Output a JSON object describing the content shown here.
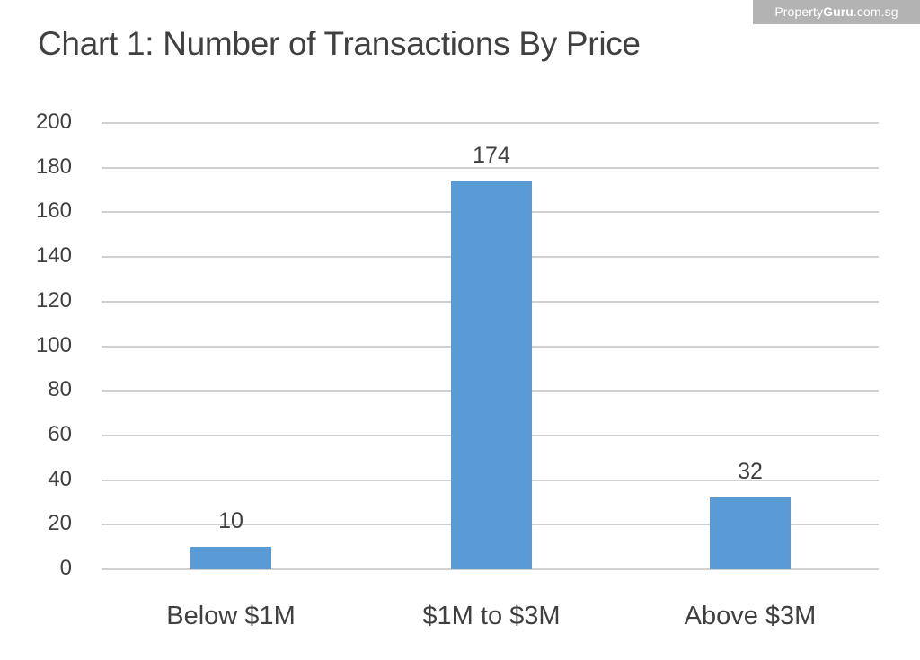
{
  "watermark": {
    "brand_light": "Property",
    "brand_bold": "Guru",
    "domain": ".com.sg"
  },
  "title": "Chart 1: Number of Transactions By Price",
  "colors": {
    "bar": "#5b9bd5",
    "grid": "#d0d0d0",
    "text": "#404040",
    "watermark_bg": "#b3b3b3"
  },
  "y_ticks": [
    "0",
    "20",
    "40",
    "60",
    "80",
    "100",
    "120",
    "140",
    "160",
    "180",
    "200"
  ],
  "bars": [
    {
      "category": "Below $1M",
      "value": 10,
      "label": "10"
    },
    {
      "category": "$1M to $3M",
      "value": 174,
      "label": "174"
    },
    {
      "category": "Above $3M",
      "value": 32,
      "label": "32"
    }
  ],
  "chart_data": {
    "type": "bar",
    "title": "Chart 1: Number of Transactions By Price",
    "categories": [
      "Below $1M",
      "$1M to $3M",
      "Above $3M"
    ],
    "values": [
      10,
      174,
      32
    ],
    "data_labels": [
      "10",
      "174",
      "32"
    ],
    "xlabel": "",
    "ylabel": "",
    "ylim": [
      0,
      200
    ],
    "yticks": [
      0,
      20,
      40,
      60,
      80,
      100,
      120,
      140,
      160,
      180,
      200
    ],
    "grid": true,
    "legend": null,
    "series_color": "#5b9bd5"
  }
}
